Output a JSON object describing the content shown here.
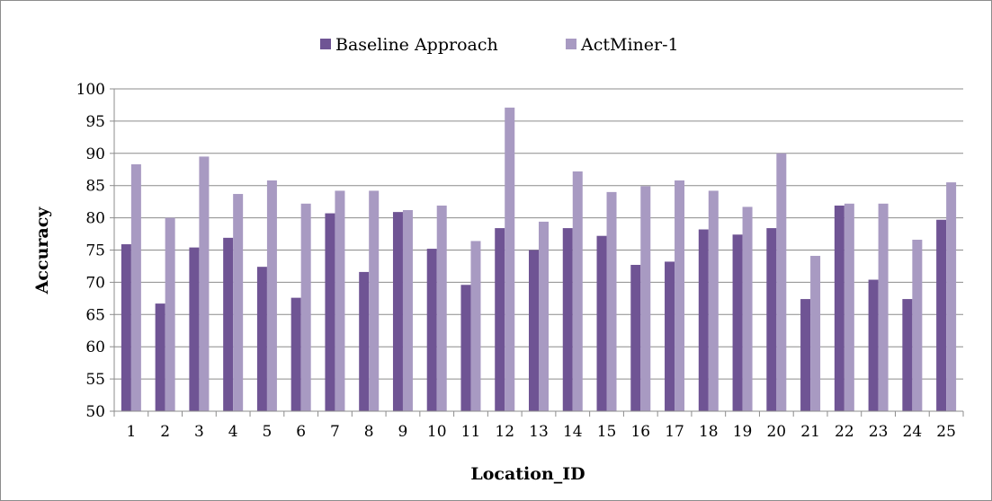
{
  "chart_data": {
    "type": "bar",
    "title": "",
    "xlabel": "Location_ID",
    "ylabel": "Accuracy",
    "ylim": [
      50,
      100
    ],
    "ytick_step": 5,
    "grid": true,
    "legend_position": "top",
    "categories": [
      "1",
      "2",
      "3",
      "4",
      "5",
      "6",
      "7",
      "8",
      "9",
      "10",
      "11",
      "12",
      "13",
      "14",
      "15",
      "16",
      "17",
      "18",
      "19",
      "20",
      "21",
      "22",
      "23",
      "24",
      "25"
    ],
    "series": [
      {
        "name": "Baseline Approach",
        "color": "#6f5494",
        "values": [
          75.9,
          66.7,
          75.4,
          76.9,
          72.4,
          67.6,
          80.7,
          71.6,
          80.9,
          75.2,
          69.6,
          78.4,
          75.0,
          78.4,
          77.2,
          72.7,
          73.2,
          78.2,
          77.4,
          78.4,
          67.4,
          81.9,
          70.4,
          67.4,
          79.7
        ]
      },
      {
        "name": "ActMiner-1",
        "color": "#a89ac2",
        "values": [
          88.3,
          80.0,
          89.5,
          83.7,
          85.8,
          82.2,
          84.2,
          84.2,
          81.2,
          81.9,
          76.4,
          97.1,
          79.4,
          87.2,
          84.0,
          84.9,
          85.8,
          84.2,
          81.7,
          90.0,
          74.1,
          82.2,
          82.2,
          76.6,
          85.5
        ]
      }
    ]
  }
}
